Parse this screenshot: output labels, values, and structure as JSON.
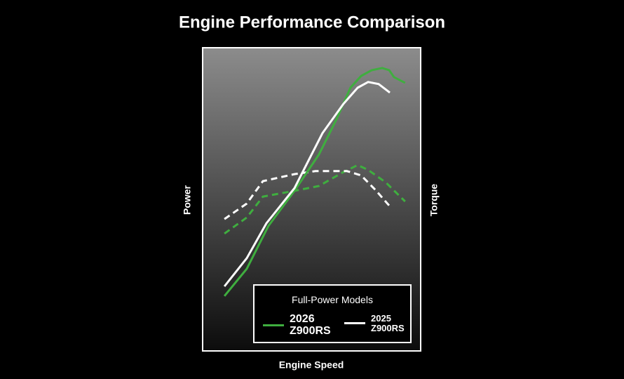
{
  "chart_data": {
    "type": "line",
    "title": "Engine Performance Comparison",
    "x_label": "Engine Speed",
    "y_label": "Power",
    "y2_label": "Torque",
    "legend_title": "Full-Power Models",
    "xlim": [
      0,
      100
    ],
    "ylim": [
      0,
      100
    ],
    "series": [
      {
        "name": "2026 Z900RS",
        "color": "#3fae3f",
        "x": [
          10.3,
          20.5,
          30.4,
          42.3,
          53.5,
          61.5,
          67.9,
          72.8,
          77.6,
          82.4,
          85.6,
          87.8,
          92.9
        ],
        "power": [
          18.1,
          27.1,
          41.2,
          52.8,
          64.8,
          76.4,
          86.8,
          90.7,
          92.6,
          93.3,
          92.6,
          90.3,
          88.4
        ],
        "torque_x": [
          10.3,
          20.5,
          27.9,
          42.3,
          53.5,
          64.7,
          71.2,
          76.0,
          84.0,
          92.9
        ],
        "torque": [
          38.7,
          44.0,
          50.9,
          52.8,
          54.4,
          59.0,
          61.3,
          59.7,
          55.6,
          49.3
        ]
      },
      {
        "name": "2025 Z900RS",
        "color": "#ffffff",
        "x": [
          10.3,
          20.5,
          29.5,
          42.3,
          55.1,
          64.7,
          71.2,
          76.0,
          80.8,
          85.9
        ],
        "power": [
          21.3,
          30.6,
          42.1,
          53.7,
          71.8,
          81.5,
          86.8,
          88.7,
          88.0,
          85.2
        ],
        "torque_x": [
          10.3,
          20.5,
          27.9,
          42.3,
          51.9,
          66.3,
          72.8,
          79.2,
          86.5
        ],
        "torque": [
          43.5,
          48.6,
          56.0,
          58.3,
          59.3,
          59.3,
          57.9,
          53.2,
          47.2
        ]
      }
    ]
  }
}
